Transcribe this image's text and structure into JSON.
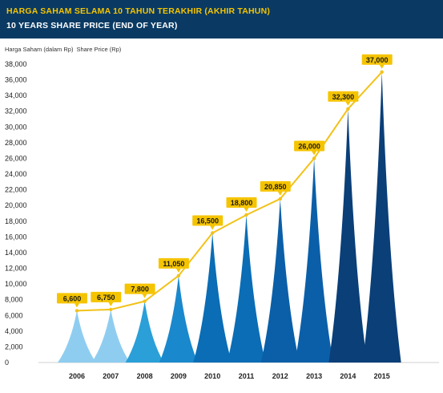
{
  "header": {
    "title_id": "HARGA SAHAM SELAMA 10 TAHUN TERAKHIR (AKHIR TAHUN)",
    "title_en": "10 YEARS SHARE PRICE (END OF YEAR)"
  },
  "colors": {
    "header_bg": "#0a3a63",
    "title_accent": "#f5c400",
    "line": "#f2c21a",
    "label_bg": "#f5c400"
  },
  "chart_data": {
    "type": "bar",
    "ylabel_id": "Harga Saham (dalam Rp)",
    "ylabel_en": "Share Price (Rp)",
    "categories": [
      "2006",
      "2007",
      "2008",
      "2009",
      "2010",
      "2011",
      "2012",
      "2013",
      "2014",
      "2015"
    ],
    "values": [
      6600,
      6750,
      7800,
      11050,
      16500,
      18800,
      20850,
      26000,
      32300,
      37000
    ],
    "value_labels": [
      "6,600",
      "6,750",
      "7,800",
      "11,050",
      "16,500",
      "18,800",
      "20,850",
      "26,000",
      "32,300",
      "37,000"
    ],
    "bar_colors": [
      "#8fcdf0",
      "#8fcdf0",
      "#2a9fd8",
      "#1a88cc",
      "#0a6db5",
      "#0a6db5",
      "#0a5fa8",
      "#0a5fa8",
      "#0a3f78",
      "#0a3f78"
    ],
    "ylim": [
      0,
      38000
    ],
    "yticks": [
      0,
      2000,
      4000,
      6000,
      8000,
      10000,
      12000,
      14000,
      16000,
      18000,
      20000,
      22000,
      24000,
      26000,
      28000,
      30000,
      32000,
      34000,
      36000,
      38000
    ],
    "ytick_labels": [
      "0",
      "2,000",
      "4,000",
      "6,000",
      "8,000",
      "10,000",
      "12,000",
      "14,000",
      "16,000",
      "18,000",
      "20,000",
      "22,000",
      "24,000",
      "26,000",
      "28,000",
      "30,000",
      "32,000",
      "34,000",
      "36,000",
      "38,000"
    ],
    "grid": false,
    "legend": "none"
  }
}
